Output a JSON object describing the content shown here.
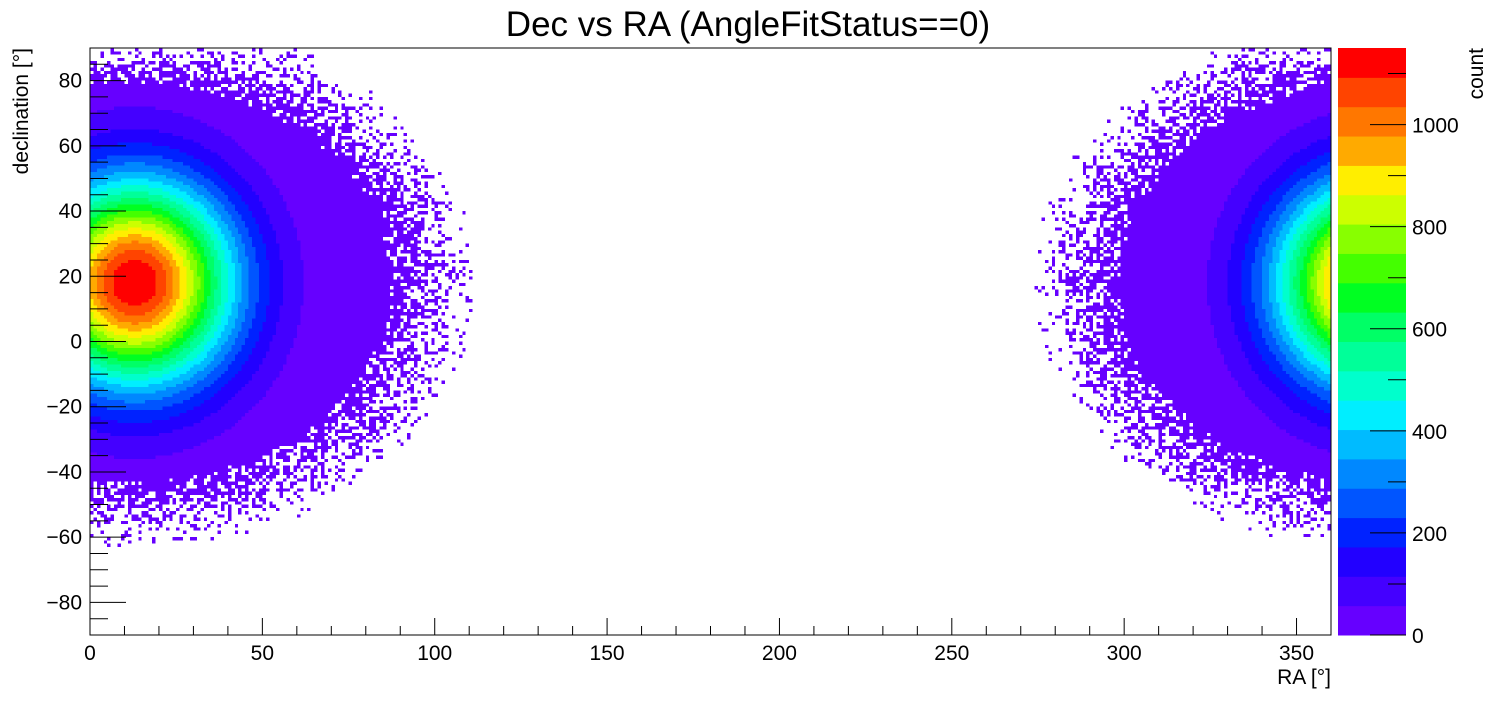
{
  "chart_data": {
    "type": "heatmap",
    "title": "Dec vs RA (AngleFitStatus==0)",
    "xlabel": "RA [°]",
    "ylabel": "declination [°]",
    "zlabel": "count",
    "xlim": [
      0,
      360
    ],
    "ylim": [
      -90,
      90
    ],
    "zlim": [
      0,
      1150
    ],
    "x_ticks": [
      0,
      50,
      100,
      150,
      200,
      250,
      300,
      350
    ],
    "y_ticks": [
      -80,
      -60,
      -40,
      -20,
      0,
      20,
      40,
      60,
      80
    ],
    "z_ticks": [
      0,
      200,
      400,
      600,
      800,
      1000
    ],
    "x_tick_labels": [
      "0",
      "50",
      "100",
      "150",
      "200",
      "250",
      "300",
      "350"
    ],
    "y_tick_labels": [
      "−80",
      "−60",
      "−40",
      "−20",
      "0",
      "20",
      "40",
      "60",
      "80"
    ],
    "z_tick_labels": [
      "0",
      "200",
      "400",
      "600",
      "800",
      "1000"
    ],
    "palette": [
      "#6600ff",
      "#4400ff",
      "#2200ff",
      "#0022ff",
      "#0055ff",
      "#0088ff",
      "#00bbff",
      "#00eeff",
      "#00ffcc",
      "#00ff99",
      "#00ff66",
      "#00ff22",
      "#44ff00",
      "#88ff00",
      "#ccff00",
      "#ffee00",
      "#ffaa00",
      "#ff7700",
      "#ff4400",
      "#ff0000"
    ],
    "bins": {
      "nx": 360,
      "ny": 180
    },
    "hotspot_peak": {
      "ra": 13,
      "dec": 18,
      "count": 1150
    },
    "grid": false,
    "legend": "color bar right"
  }
}
